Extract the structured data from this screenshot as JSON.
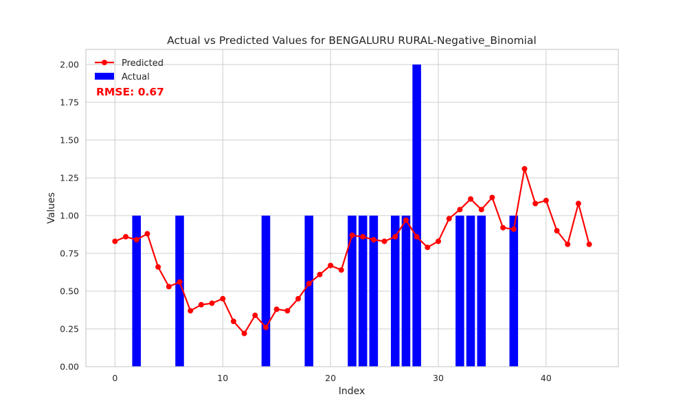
{
  "chart_data": {
    "type": "bar",
    "title": "Actual vs Predicted Values for BENGALURU RURAL-Negative_Binomial",
    "xlabel": "Index",
    "ylabel": "Values",
    "xlim": [
      -2.7,
      46.7
    ],
    "ylim": [
      0,
      2.1
    ],
    "grid": true,
    "legend_position": "top-left",
    "x_ticks": [
      0,
      10,
      20,
      30,
      40
    ],
    "x_tick_labels": [
      "0",
      "10",
      "20",
      "30",
      "40"
    ],
    "y_ticks": [
      0,
      0.25,
      0.5,
      0.75,
      1.0,
      1.25,
      1.5,
      1.75,
      2.0
    ],
    "y_tick_labels": [
      "0.00",
      "0.25",
      "0.50",
      "0.75",
      "1.00",
      "1.25",
      "1.50",
      "1.75",
      "2.00"
    ],
    "series": [
      {
        "name": "Actual",
        "kind": "bar",
        "color": "#0000ff",
        "x": [
          0,
          1,
          2,
          3,
          4,
          5,
          6,
          7,
          8,
          9,
          10,
          11,
          12,
          13,
          14,
          15,
          16,
          17,
          18,
          19,
          20,
          21,
          22,
          23,
          24,
          25,
          26,
          27,
          28,
          29,
          30,
          31,
          32,
          33,
          34,
          35,
          36,
          37,
          38,
          39,
          40,
          41,
          42,
          43,
          44
        ],
        "values": [
          0,
          0,
          1,
          0,
          0,
          0,
          1,
          0,
          0,
          0,
          0,
          0,
          0,
          0,
          1,
          0,
          0,
          0,
          1,
          0,
          0,
          0,
          1,
          1,
          1,
          0,
          1,
          1,
          2,
          0,
          0,
          0,
          1,
          1,
          1,
          0,
          0,
          1,
          0,
          0,
          0,
          0,
          0,
          0,
          0
        ]
      },
      {
        "name": "Predicted",
        "kind": "line",
        "color": "#ff0000",
        "x": [
          0,
          1,
          2,
          3,
          4,
          5,
          6,
          7,
          8,
          9,
          10,
          11,
          12,
          13,
          14,
          15,
          16,
          17,
          18,
          19,
          20,
          21,
          22,
          23,
          24,
          25,
          26,
          27,
          28,
          29,
          30,
          31,
          32,
          33,
          34,
          35,
          36,
          37,
          38,
          39,
          40,
          41,
          42,
          43,
          44
        ],
        "values": [
          0.83,
          0.86,
          0.84,
          0.88,
          0.66,
          0.53,
          0.56,
          0.37,
          0.41,
          0.42,
          0.45,
          0.3,
          0.22,
          0.34,
          0.26,
          0.38,
          0.37,
          0.45,
          0.55,
          0.61,
          0.67,
          0.64,
          0.87,
          0.86,
          0.84,
          0.83,
          0.86,
          0.97,
          0.86,
          0.79,
          0.83,
          0.98,
          1.04,
          1.11,
          1.04,
          1.12,
          0.92,
          0.91,
          1.31,
          1.08,
          1.1,
          0.9,
          0.81,
          1.08,
          0.81
        ]
      }
    ],
    "annotation": "RMSE: 0.67"
  }
}
